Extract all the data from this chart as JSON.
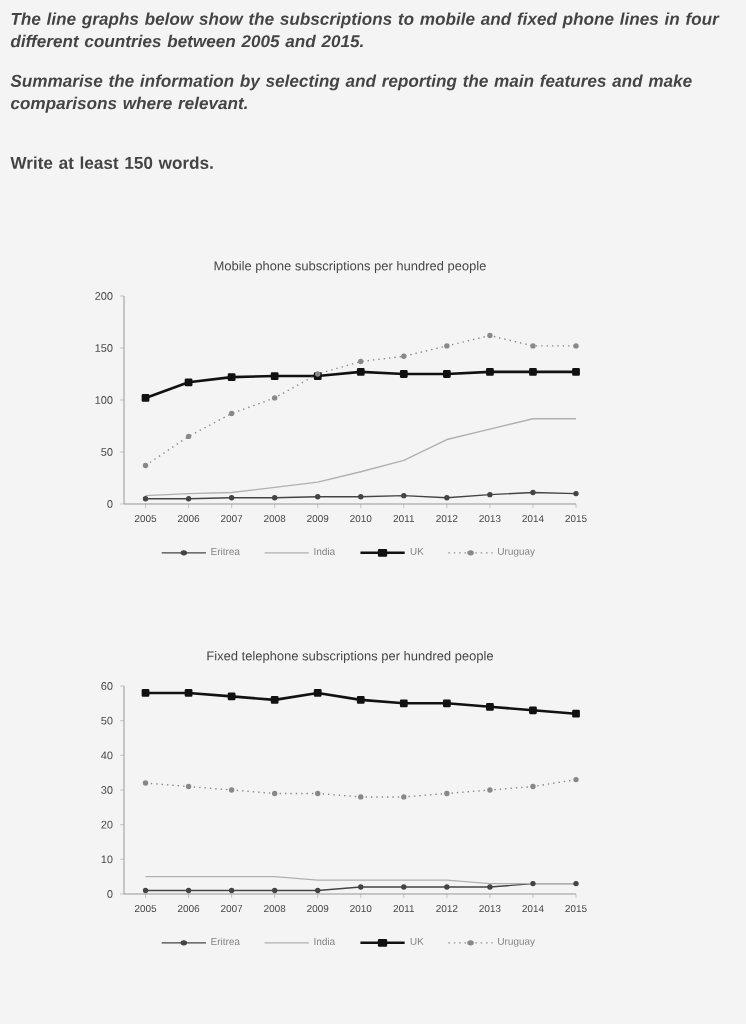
{
  "chart_data": [
    {
      "type": "line",
      "title": "Mobile phone subscriptions per hundred people",
      "annotations": [
        "The line graphs below show the subscriptions to mobile and fixed phone lines in four different countries between 2005 and 2015.",
        "Summarise the information by selecting and reporting the main features and make comparisons where relevant.",
        "Write at least 150 words."
      ],
      "x": [
        2005,
        2006,
        2007,
        2008,
        2009,
        2010,
        2011,
        2012,
        2013,
        2014,
        2015
      ],
      "series": [
        {
          "name": "Eritrea",
          "color": "#444444",
          "marker": "circle",
          "line_style": "solid",
          "values": [
            5,
            5,
            6,
            6,
            7,
            7,
            8,
            6,
            9,
            11,
            10
          ]
        },
        {
          "name": "India",
          "color": "#b0b0b0",
          "marker": "none",
          "line_style": "solid",
          "values": [
            8,
            10,
            11,
            16,
            21,
            31,
            42,
            62,
            72,
            82,
            82
          ]
        },
        {
          "name": "UK",
          "color": "#111111",
          "marker": "square",
          "line_style": "solid",
          "values": [
            102,
            117,
            122,
            123,
            123,
            127,
            125,
            125,
            127,
            127,
            127
          ]
        },
        {
          "name": "Uruguay",
          "color": "#888888",
          "marker": "circle",
          "line_style": "dotted",
          "values": [
            37,
            65,
            87,
            102,
            125,
            137,
            142,
            152,
            162,
            152,
            152
          ]
        }
      ],
      "xlim": [
        2004.5,
        2015
      ],
      "xticks": [
        2005,
        2006,
        2007,
        2008,
        2009,
        2010,
        2011,
        2012,
        2013,
        2014,
        2015
      ],
      "ylim": [
        0,
        200
      ],
      "yticks": [
        0,
        50,
        100,
        150,
        200
      ],
      "grid": false,
      "legend": "bottom"
    },
    {
      "type": "line",
      "title": "Fixed telephone subscriptions per hundred people",
      "x": [
        2005,
        2006,
        2007,
        2008,
        2009,
        2010,
        2011,
        2012,
        2013,
        2014,
        2015
      ],
      "series": [
        {
          "name": "Eritrea",
          "color": "#444444",
          "marker": "circle",
          "line_style": "solid",
          "values": [
            1,
            1,
            1,
            1,
            1,
            2,
            2,
            2,
            2,
            3,
            3
          ]
        },
        {
          "name": "India",
          "color": "#b0b0b0",
          "marker": "none",
          "line_style": "solid",
          "values": [
            5,
            5,
            5,
            5,
            4,
            4,
            4,
            4,
            3,
            3,
            3
          ]
        },
        {
          "name": "UK",
          "color": "#111111",
          "marker": "square",
          "line_style": "solid",
          "values": [
            58,
            58,
            57,
            56,
            58,
            56,
            55,
            55,
            54,
            53,
            52
          ]
        },
        {
          "name": "Uruguay",
          "color": "#888888",
          "marker": "circle",
          "line_style": "dotted",
          "values": [
            32,
            31,
            30,
            29,
            29,
            28,
            28,
            29,
            30,
            31,
            33
          ]
        }
      ],
      "xlim": [
        2004.5,
        2015
      ],
      "xticks": [
        2005,
        2006,
        2007,
        2008,
        2009,
        2010,
        2011,
        2012,
        2013,
        2014,
        2015
      ],
      "ylim": [
        0,
        60
      ],
      "yticks": [
        0,
        10,
        20,
        30,
        40,
        50,
        60
      ],
      "grid": false,
      "legend": "bottom"
    }
  ]
}
